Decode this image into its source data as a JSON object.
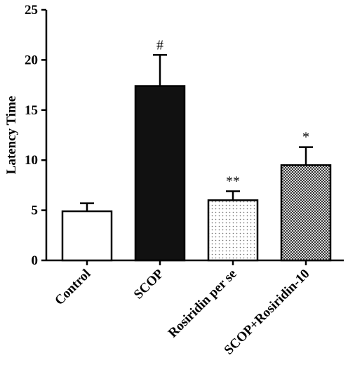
{
  "chart_data": {
    "type": "bar",
    "title": "",
    "xlabel": "",
    "ylabel": "Latency Time",
    "ylim": [
      0,
      25
    ],
    "yticks": [
      0,
      5,
      10,
      15,
      20,
      25
    ],
    "grid": false,
    "categories": [
      "Control",
      "SCOP",
      "Rosiridin per se",
      "SCOP+Rosiridin-10"
    ],
    "values": [
      4.9,
      17.4,
      6.0,
      9.5
    ],
    "errors": [
      0.8,
      3.1,
      0.9,
      1.8
    ],
    "annotations": [
      "",
      "#",
      "**",
      "*"
    ],
    "fills": [
      "white",
      "black",
      "light-dots",
      "dark-checker"
    ]
  }
}
